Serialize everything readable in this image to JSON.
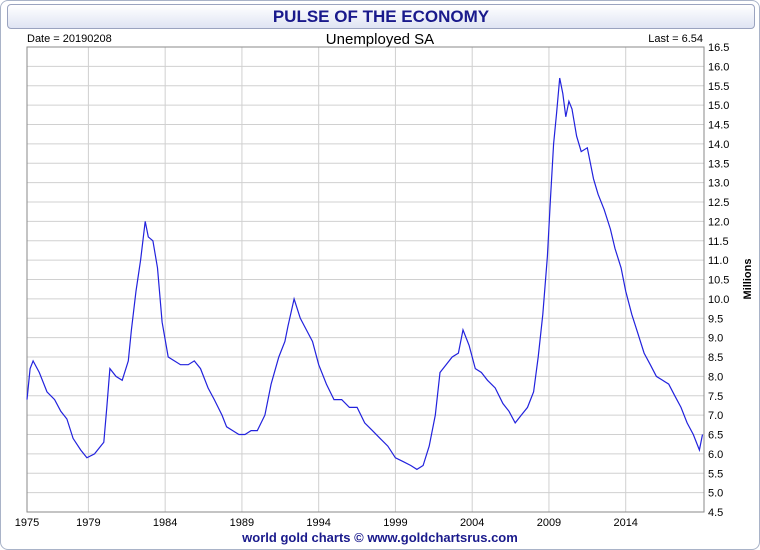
{
  "title": "PULSE OF THE ECONOMY",
  "header": {
    "date_label": "Date = 20190208",
    "subtitle": "Unemployed SA",
    "last_label": "Last = 6.54"
  },
  "footer": "world gold charts © www.goldchartsrus.com",
  "colors": {
    "line": "#2222dd",
    "title": "#1a1a8c",
    "grid": "#d0d0d0"
  },
  "chart_data": {
    "type": "line",
    "title": "Unemployed SA",
    "ylabel": "Millions",
    "xlabel": "",
    "xlim": [
      1975,
      2019.1
    ],
    "ylim": [
      4.5,
      16.5
    ],
    "grid": true,
    "x_ticks": [
      1975,
      1979,
      1984,
      1989,
      1994,
      1999,
      2004,
      2009,
      2014
    ],
    "x_tick_labels": [
      "1975",
      "1979",
      "1984",
      "1989",
      "1994",
      "1999",
      "2004",
      "2009",
      "2014"
    ],
    "y_ticks": [
      4.5,
      5.0,
      5.5,
      6.0,
      6.5,
      7.0,
      7.5,
      8.0,
      8.5,
      9.0,
      9.5,
      10.0,
      10.5,
      11.0,
      11.5,
      12.0,
      12.5,
      13.0,
      13.5,
      14.0,
      14.5,
      15.0,
      15.5,
      16.0,
      16.5
    ],
    "y_tick_labels": [
      "4.5",
      "5.0",
      "5.5",
      "6.0",
      "6.5",
      "7.0",
      "7.5",
      "8.0",
      "8.5",
      "9.0",
      "9.5",
      "10.0",
      "10.5",
      "11.0",
      "11.5",
      "12.0",
      "12.5",
      "13.0",
      "13.5",
      "14.0",
      "14.5",
      "15.0",
      "15.5",
      "16.0",
      "16.5"
    ],
    "series": [
      {
        "x": [
          1975.0,
          1975.2,
          1975.4,
          1975.8,
          1976.3,
          1976.8,
          1977.2,
          1977.6,
          1978.0,
          1978.5,
          1978.9,
          1979.4,
          1979.8,
          1980.0,
          1980.2,
          1980.4,
          1980.8,
          1981.2,
          1981.6,
          1981.8,
          1982.1,
          1982.4,
          1982.7,
          1982.9,
          1983.2,
          1983.5,
          1983.8,
          1984.2,
          1984.6,
          1985.0,
          1985.5,
          1985.9,
          1986.3,
          1986.8,
          1987.2,
          1987.7,
          1988.0,
          1988.4,
          1988.8,
          1989.2,
          1989.6,
          1990.0,
          1990.5,
          1990.9,
          1991.4,
          1991.8,
          1992.0,
          1992.4,
          1992.8,
          1993.2,
          1993.6,
          1994.0,
          1994.5,
          1995.0,
          1995.5,
          1996.0,
          1996.5,
          1997.0,
          1997.5,
          1998.0,
          1998.5,
          1999.0,
          1999.5,
          2000.0,
          2000.4,
          2000.8,
          2001.2,
          2001.6,
          2001.9,
          2002.3,
          2002.7,
          2003.1,
          2003.4,
          2003.8,
          2004.2,
          2004.6,
          2005.0,
          2005.5,
          2006.0,
          2006.4,
          2006.8,
          2007.2,
          2007.6,
          2008.0,
          2008.3,
          2008.6,
          2008.9,
          2009.1,
          2009.3,
          2009.5,
          2009.7,
          2009.9,
          2010.1,
          2010.3,
          2010.5,
          2010.8,
          2011.1,
          2011.5,
          2011.9,
          2012.2,
          2012.6,
          2013.0,
          2013.3,
          2013.7,
          2014.0,
          2014.4,
          2014.8,
          2015.2,
          2015.6,
          2016.0,
          2016.4,
          2016.8,
          2017.2,
          2017.6,
          2018.0,
          2018.4,
          2018.8,
          2019.0
        ],
        "y": [
          7.4,
          8.2,
          8.4,
          8.1,
          7.6,
          7.4,
          7.1,
          6.9,
          6.4,
          6.1,
          5.9,
          6.0,
          6.2,
          6.3,
          7.2,
          8.2,
          8.0,
          7.9,
          8.4,
          9.2,
          10.2,
          11.0,
          12.0,
          11.6,
          11.5,
          10.8,
          9.4,
          8.5,
          8.4,
          8.3,
          8.3,
          8.4,
          8.2,
          7.7,
          7.4,
          7.0,
          6.7,
          6.6,
          6.5,
          6.5,
          6.6,
          6.6,
          7.0,
          7.8,
          8.5,
          8.9,
          9.3,
          10.0,
          9.5,
          9.2,
          8.9,
          8.3,
          7.8,
          7.4,
          7.4,
          7.2,
          7.2,
          6.8,
          6.6,
          6.4,
          6.2,
          5.9,
          5.8,
          5.7,
          5.6,
          5.7,
          6.2,
          7.0,
          8.1,
          8.3,
          8.5,
          8.6,
          9.2,
          8.8,
          8.2,
          8.1,
          7.9,
          7.7,
          7.3,
          7.1,
          6.8,
          7.0,
          7.2,
          7.6,
          8.5,
          9.6,
          11.1,
          12.6,
          14.0,
          14.8,
          15.7,
          15.3,
          14.7,
          15.1,
          14.9,
          14.2,
          13.8,
          13.9,
          13.1,
          12.7,
          12.3,
          11.8,
          11.3,
          10.8,
          10.2,
          9.6,
          9.1,
          8.6,
          8.3,
          8.0,
          7.9,
          7.8,
          7.5,
          7.2,
          6.8,
          6.5,
          6.1,
          6.5
        ]
      }
    ]
  }
}
